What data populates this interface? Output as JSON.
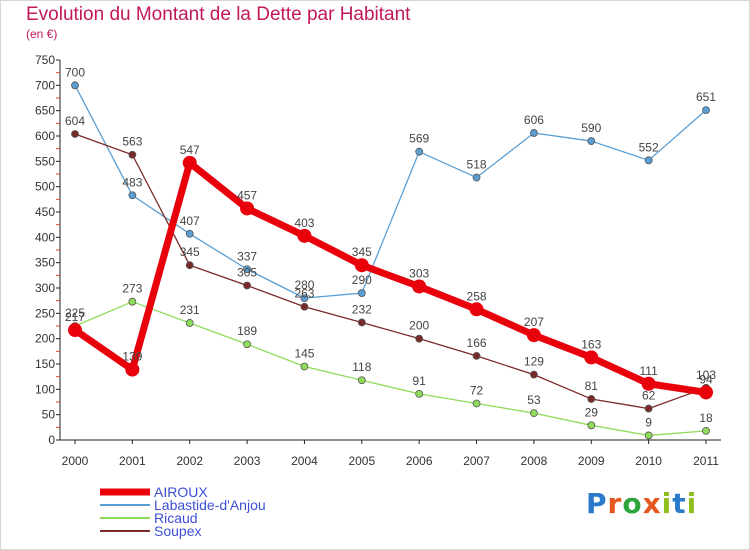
{
  "chart_data": {
    "type": "line",
    "title": "Evolution du Montant de la Dette par Habitant",
    "subtitle": "(en €)",
    "x": [
      "2000",
      "2001",
      "2002",
      "2003",
      "2004",
      "2005",
      "2006",
      "2007",
      "2008",
      "2009",
      "2010",
      "2011"
    ],
    "ylim": [
      0,
      750
    ],
    "yticks": [
      0,
      50,
      100,
      150,
      200,
      250,
      300,
      350,
      400,
      450,
      500,
      550,
      600,
      650,
      700,
      750
    ],
    "grid": false,
    "legend_position": "bottom-left",
    "series": [
      {
        "name": "AIROUX",
        "color": "#e8000b",
        "width": 7,
        "marker": 7,
        "values": [
          217,
          139,
          547,
          457,
          403,
          345,
          303,
          258,
          207,
          163,
          111,
          94
        ]
      },
      {
        "name": "Labastide-d'Anjou",
        "color": "#5a9fd4",
        "width": 1.3,
        "marker": 3.5,
        "values": [
          700,
          483,
          407,
          337,
          280,
          290,
          569,
          518,
          606,
          590,
          552,
          651
        ]
      },
      {
        "name": "Ricaud",
        "color": "#8fdc5a",
        "width": 1.3,
        "marker": 3.5,
        "values": [
          225,
          273,
          231,
          189,
          145,
          118,
          91,
          72,
          53,
          29,
          9,
          18
        ]
      },
      {
        "name": "Soupex",
        "color": "#7b2a2a",
        "width": 1.3,
        "marker": 3.5,
        "values": [
          604,
          563,
          345,
          305,
          263,
          232,
          200,
          166,
          129,
          81,
          62,
          103
        ]
      }
    ]
  },
  "logo": {
    "letters": [
      "P",
      "r",
      "o",
      "x",
      "i",
      "t",
      "i"
    ],
    "colors": [
      "#2a7ac9",
      "#e6571f",
      "#2ea53a",
      "#e6571f",
      "#8fbf1e",
      "#2a7ac9",
      "#8fbf1e"
    ]
  }
}
